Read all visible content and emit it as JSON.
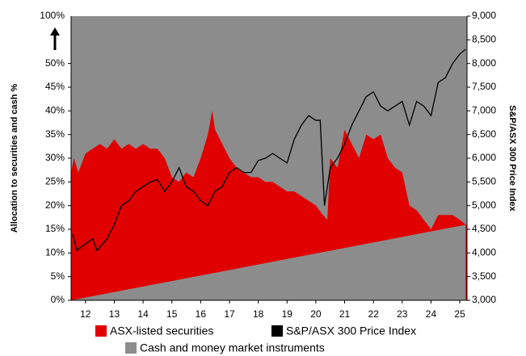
{
  "chart_data": {
    "type": "area-line",
    "y_label": "Allocation to securities and cash %",
    "y2_label": "S&P/ASX 300 Price Index",
    "top_label": "100%",
    "xlim": [
      11.5,
      25.25
    ],
    "xticks": [
      12,
      13,
      14,
      15,
      16,
      17,
      18,
      19,
      20,
      21,
      22,
      23,
      24,
      25
    ],
    "ylim": [
      0,
      60
    ],
    "yticks": [
      {
        "value": 0,
        "label": "0%"
      },
      {
        "value": 5,
        "label": "5%"
      },
      {
        "value": 10,
        "label": "10%"
      },
      {
        "value": 15,
        "label": "15%"
      },
      {
        "value": 20,
        "label": "20%"
      },
      {
        "value": 25,
        "label": "25%"
      },
      {
        "value": 30,
        "label": "30%"
      },
      {
        "value": 35,
        "label": "35%"
      },
      {
        "value": 40,
        "label": "40%"
      },
      {
        "value": 45,
        "label": "45%"
      },
      {
        "value": 50,
        "label": "50%"
      }
    ],
    "y2lim": [
      3000,
      9000
    ],
    "y2ticks": [
      {
        "value": 3000,
        "label": "3,000"
      },
      {
        "value": 3500,
        "label": "3,500"
      },
      {
        "value": 4000,
        "label": "4,000"
      },
      {
        "value": 4500,
        "label": "4,500"
      },
      {
        "value": 5000,
        "label": "5,000"
      },
      {
        "value": 5500,
        "label": "5,500"
      },
      {
        "value": 6000,
        "label": "6,000"
      },
      {
        "value": 6500,
        "label": "6,500"
      },
      {
        "value": 7000,
        "label": "7,000"
      },
      {
        "value": 7500,
        "label": "7,500"
      },
      {
        "value": 8000,
        "label": "8,000"
      },
      {
        "value": 8500,
        "label": "8,500"
      },
      {
        "value": 9000,
        "label": "9,000"
      }
    ],
    "series": [
      {
        "name": "ASX-listed securities",
        "color": "#e00000",
        "x": [
          11.5,
          11.6,
          11.75,
          12.0,
          12.25,
          12.5,
          12.75,
          13.0,
          13.25,
          13.5,
          13.75,
          14.0,
          14.25,
          14.5,
          14.75,
          15.0,
          15.25,
          15.5,
          15.75,
          16.0,
          16.25,
          16.4,
          16.5,
          16.75,
          17.0,
          17.25,
          17.5,
          17.75,
          18.0,
          18.25,
          18.5,
          18.75,
          19.0,
          19.25,
          19.5,
          19.75,
          20.0,
          20.25,
          20.4,
          20.5,
          20.75,
          21.0,
          21.25,
          21.5,
          21.75,
          22.0,
          22.25,
          22.5,
          22.75,
          23.0,
          23.25,
          23.5,
          23.75,
          24.0,
          24.25,
          24.5,
          24.75,
          25.0,
          25.2
        ],
        "values": [
          27,
          30,
          27,
          31,
          32,
          33,
          32,
          34,
          32,
          33,
          32,
          33,
          32,
          32,
          30,
          26,
          25,
          27,
          26,
          30,
          35,
          40,
          36,
          33,
          30,
          28,
          27,
          26,
          26,
          25,
          25,
          24,
          23,
          23,
          22,
          21,
          20,
          18,
          17,
          30,
          28,
          36,
          33,
          30,
          35,
          34,
          35,
          30,
          28,
          27,
          20,
          19,
          17,
          15,
          18,
          18,
          18,
          17,
          16
        ]
      },
      {
        "name": "S&P/ASX 300 Price Index",
        "color": "#000000",
        "axis": "y2",
        "x": [
          11.55,
          11.7,
          11.9,
          12.25,
          12.4,
          12.75,
          13.0,
          13.25,
          13.5,
          13.75,
          14.0,
          14.25,
          14.5,
          14.75,
          15.0,
          15.25,
          15.5,
          15.75,
          16.0,
          16.25,
          16.5,
          16.75,
          17.0,
          17.25,
          17.5,
          17.75,
          18.0,
          18.25,
          18.5,
          18.75,
          19.0,
          19.25,
          19.5,
          19.75,
          20.0,
          20.15,
          20.3,
          20.5,
          20.75,
          21.0,
          21.25,
          21.5,
          21.75,
          22.0,
          22.25,
          22.5,
          22.75,
          23.0,
          23.25,
          23.5,
          23.75,
          24.0,
          24.25,
          24.5,
          24.75,
          25.0,
          25.2
        ],
        "values": [
          4400,
          4050,
          4150,
          4300,
          4050,
          4300,
          4600,
          5000,
          5100,
          5300,
          5400,
          5500,
          5550,
          5300,
          5500,
          5800,
          5400,
          5300,
          5100,
          5000,
          5300,
          5400,
          5700,
          5800,
          5700,
          5700,
          5950,
          6000,
          6100,
          6000,
          5900,
          6400,
          6700,
          6900,
          6800,
          6800,
          5000,
          5800,
          6000,
          6300,
          6700,
          7000,
          7300,
          7400,
          7100,
          7000,
          7100,
          7200,
          6700,
          7200,
          7100,
          6900,
          7600,
          7700,
          8000,
          8200,
          8300
        ]
      },
      {
        "name": "Cash and money market instruments",
        "color": "#8c8c8c"
      }
    ]
  }
}
